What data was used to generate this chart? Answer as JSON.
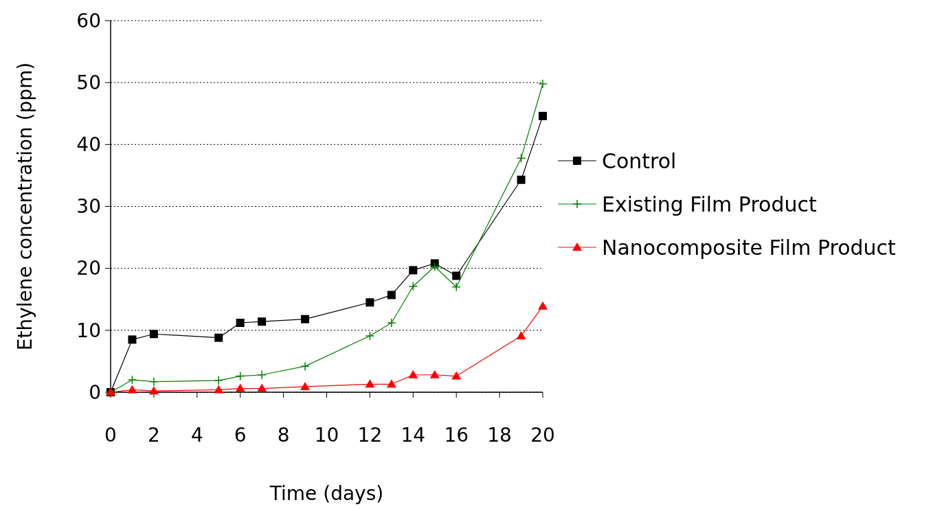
{
  "chart_data": {
    "type": "line",
    "xlabel": "Time (days)",
    "ylabel": "Ethylene concentration (ppm)",
    "x": [
      0,
      1,
      2,
      5,
      6,
      7,
      9,
      12,
      13,
      14,
      15,
      16,
      19,
      20
    ],
    "xlim": [
      0,
      20
    ],
    "xticks": [
      0,
      2,
      4,
      6,
      8,
      10,
      12,
      14,
      16,
      18,
      20
    ],
    "ylim": [
      0,
      60
    ],
    "yticks": [
      0,
      10,
      20,
      30,
      40,
      50,
      60
    ],
    "grid": "y",
    "legend": "right",
    "series": [
      {
        "name": "Control",
        "color": "#000000",
        "marker": "square",
        "values": [
          0,
          8.5,
          9.4,
          8.8,
          11.2,
          11.4,
          11.8,
          14.5,
          15.7,
          19.7,
          20.8,
          18.8,
          34.3,
          44.6
        ]
      },
      {
        "name": "Existing Film Product",
        "color": "#008000",
        "marker": "cross",
        "values": [
          0,
          2,
          1.7,
          1.9,
          2.6,
          2.8,
          4.2,
          9.1,
          11.2,
          17.1,
          20.3,
          17,
          37.8,
          49.8
        ]
      },
      {
        "name": "Nanocomposite Film Product",
        "color": "#ff0000",
        "marker": "triangle",
        "values": [
          0,
          0.4,
          0.2,
          0.4,
          0.6,
          0.6,
          0.9,
          1.3,
          1.3,
          2.8,
          2.8,
          2.6,
          9.1,
          13.9
        ]
      }
    ]
  }
}
